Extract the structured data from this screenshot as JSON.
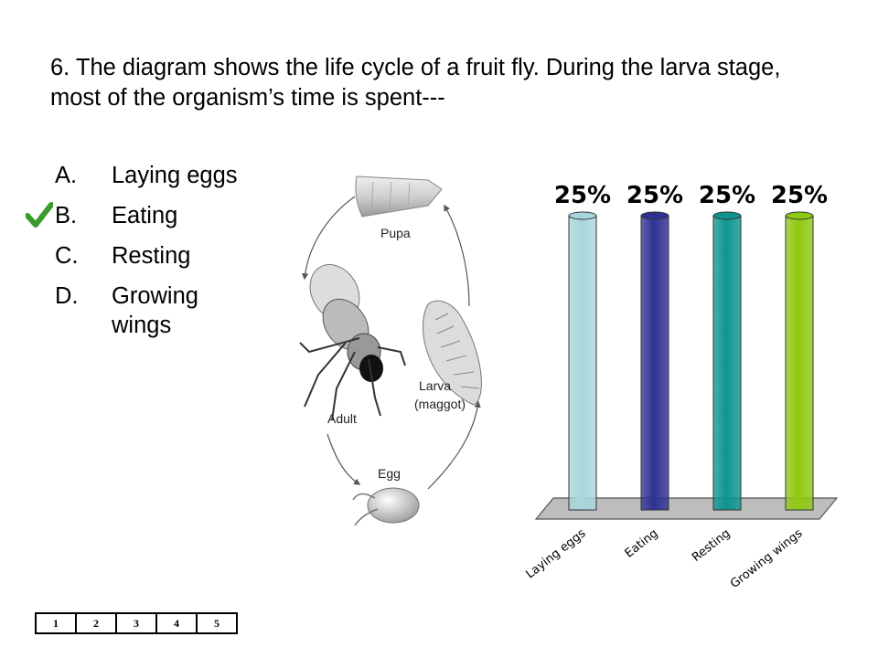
{
  "question": {
    "text": "6.  The diagram shows the life cycle of a fruit fly.  During the larva stage, most of the organism’s time is spent---"
  },
  "answers": [
    {
      "letter": "A.",
      "text": "Laying eggs",
      "checked": false
    },
    {
      "letter": "B.",
      "text": "Eating",
      "checked": true
    },
    {
      "letter": "C.",
      "text": "Resting",
      "checked": false
    },
    {
      "letter": "D.",
      "text": "Growing wings",
      "checked": false
    }
  ],
  "lifecycle": {
    "pupa": "Pupa",
    "larva": "Larva",
    "maggot": "(maggot)",
    "egg": "Egg",
    "adult": "Adult"
  },
  "chart_data": {
    "type": "bar",
    "categories": [
      "Laying eggs",
      "Eating",
      "Resting",
      "Growing wings"
    ],
    "values": [
      25,
      25,
      25,
      25
    ],
    "data_labels": [
      "25%",
      "25%",
      "25%",
      "25%"
    ],
    "colors": [
      "#a9d6dd",
      "#2f3192",
      "#0e9590",
      "#8fc812"
    ],
    "ylim": [
      0,
      25
    ],
    "title": "",
    "xlabel": "",
    "ylabel": "",
    "grid": false
  },
  "pager": [
    "1",
    "2",
    "3",
    "4",
    "5"
  ],
  "colors": {
    "check": "#3a9a2e"
  }
}
